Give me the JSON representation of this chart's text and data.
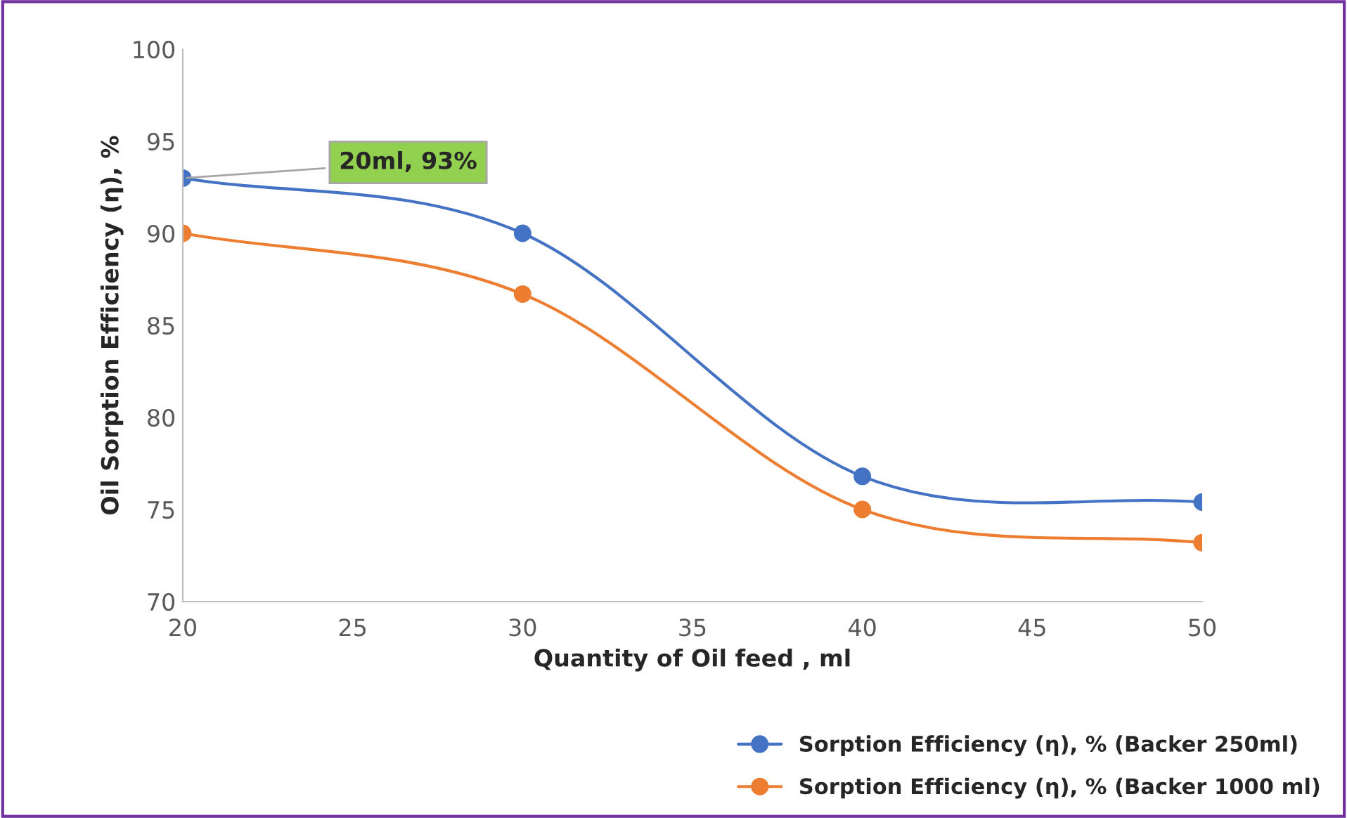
{
  "chart_data": {
    "type": "line",
    "xlabel": "Quantity of Oil feed , ml",
    "ylabel": "Oil Sorption Efficiency (η), %",
    "x": [
      20,
      30,
      40,
      50
    ],
    "series": [
      {
        "name": "Sorption Efficiency (η), % (Backer 250ml)",
        "color": "#4472c4",
        "values": [
          93,
          90,
          76.8,
          75.4
        ]
      },
      {
        "name": "Sorption Efficiency (η), % (Backer 1000 ml)",
        "color": "#ed7d31",
        "values": [
          90,
          86.7,
          75,
          73.2
        ]
      }
    ],
    "xlim": [
      20,
      50
    ],
    "xticks": [
      20,
      25,
      30,
      35,
      40,
      45,
      50
    ],
    "ylim": [
      70,
      100
    ],
    "yticks": [
      70,
      75,
      80,
      85,
      90,
      95,
      100
    ],
    "annotations": [
      {
        "text": "20ml, 93%",
        "x": 20,
        "y": 93
      }
    ],
    "marker": "circle",
    "line_style": "solid",
    "grid": false,
    "legend": "bottom right"
  }
}
